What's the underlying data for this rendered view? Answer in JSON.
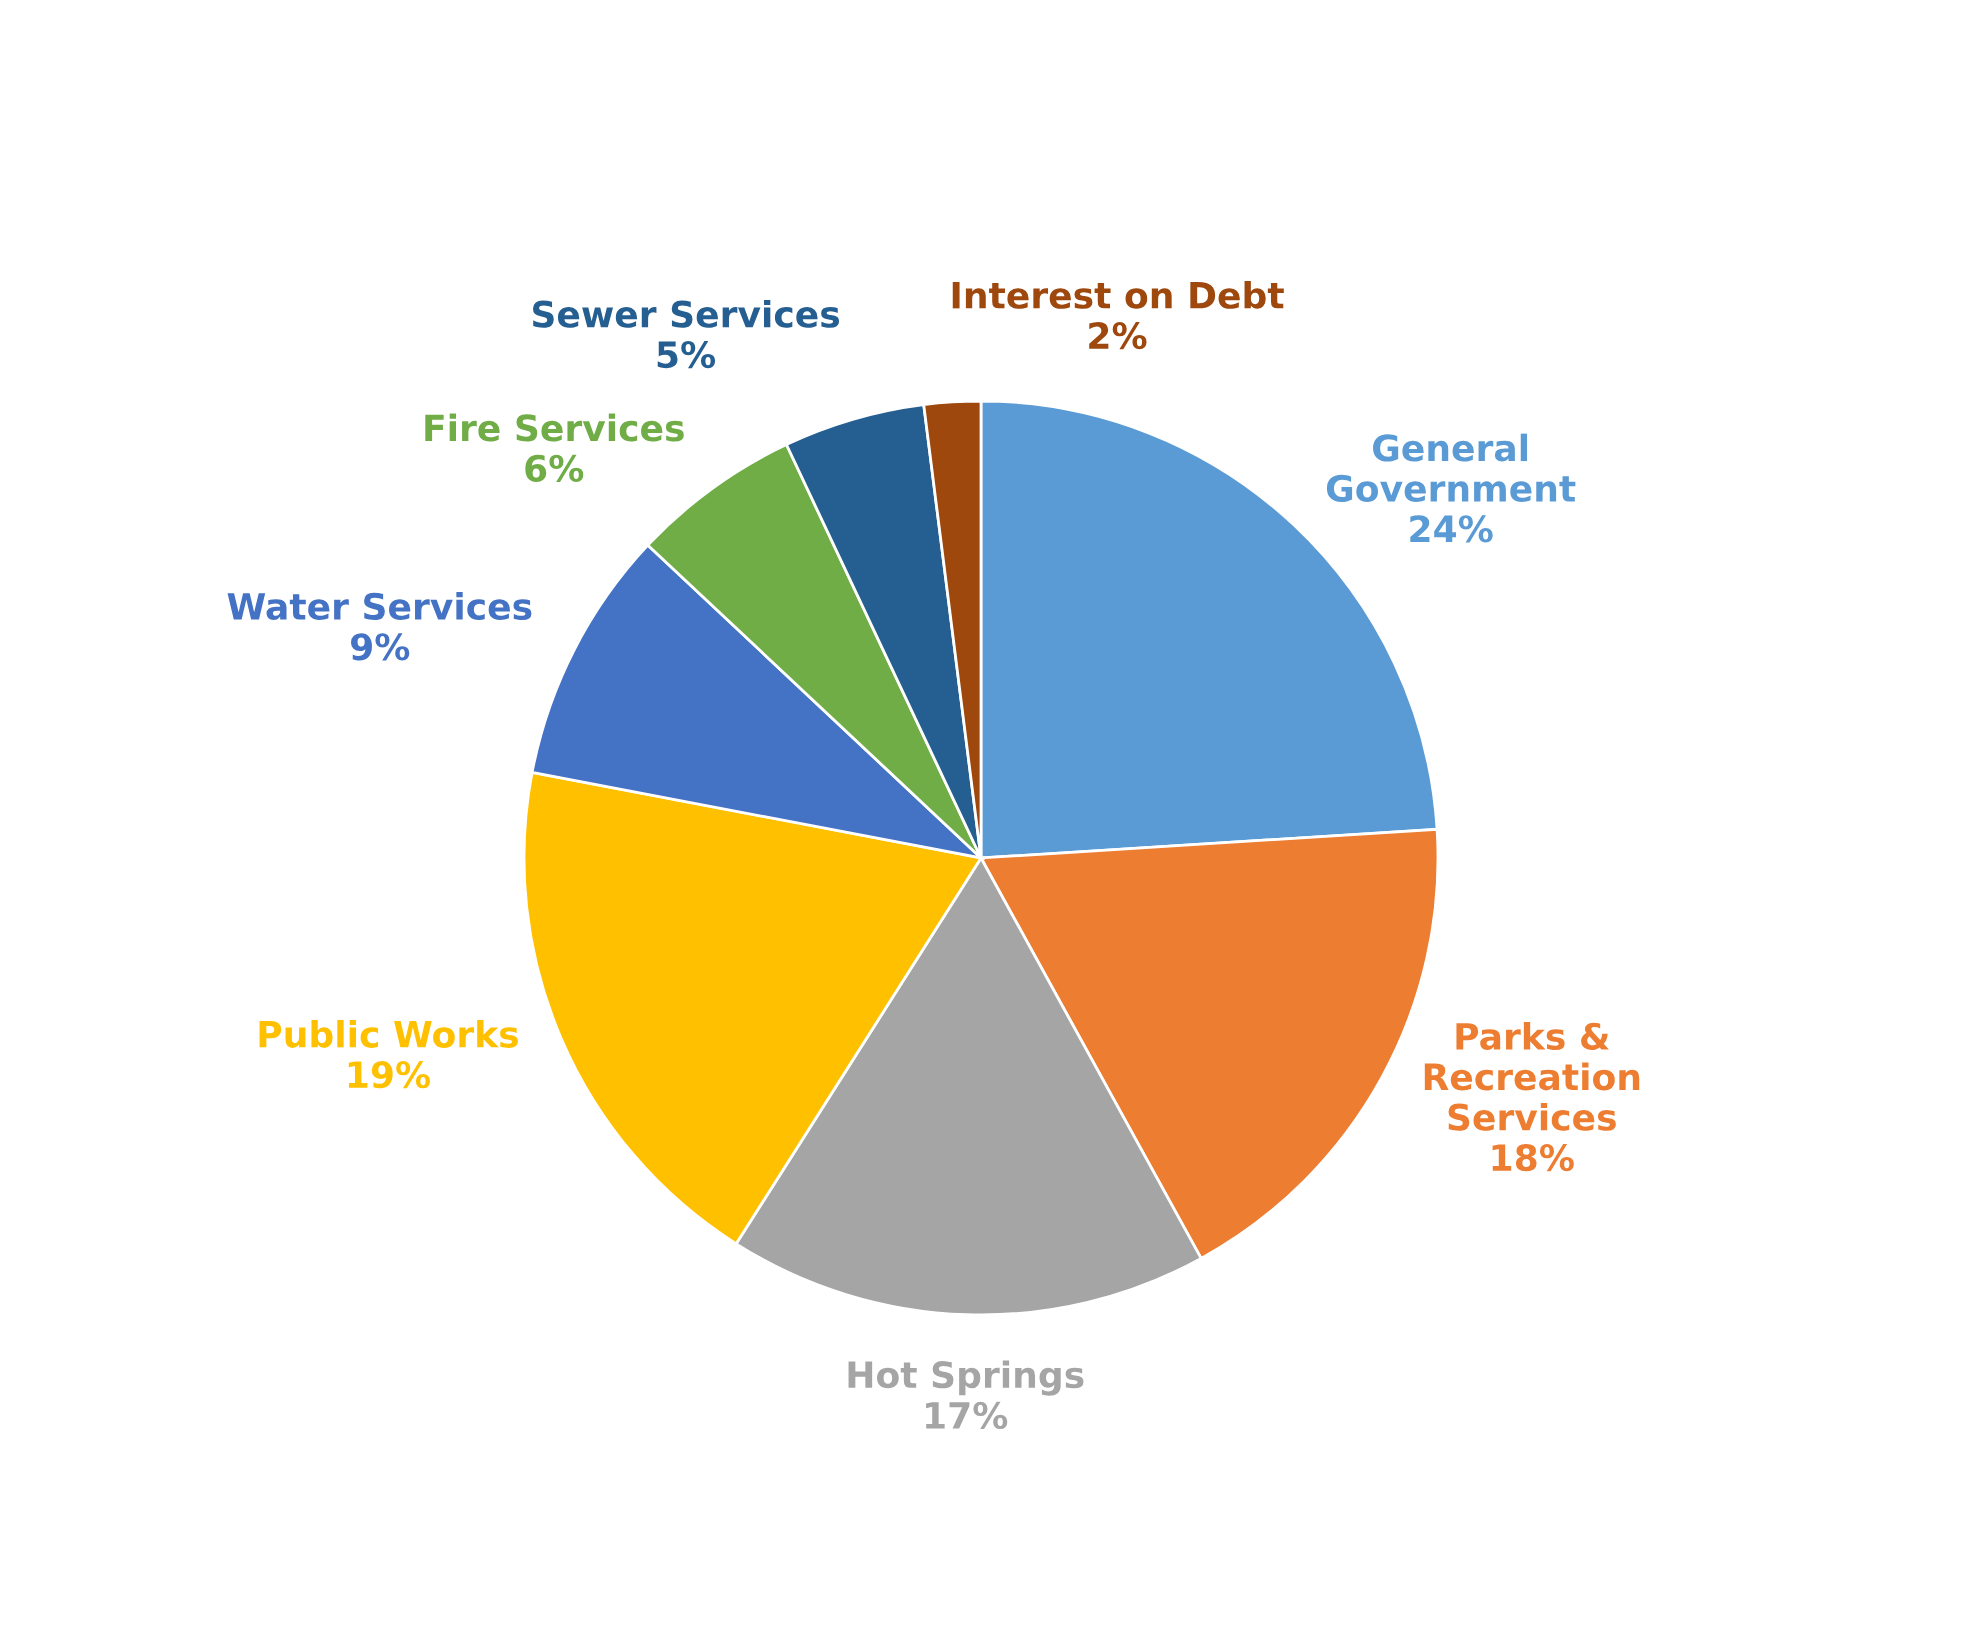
{
  "chart_data": {
    "type": "pie",
    "categories": [
      "General\nGovernment",
      "Parks &\nRecreation\nServices",
      "Hot Springs",
      "Public Works",
      "Water Services",
      "Fire Services",
      "Sewer Services",
      "Interest on Debt"
    ],
    "values": [
      24,
      18,
      17,
      19,
      9,
      6,
      5,
      2
    ],
    "value_labels": [
      "24%",
      "18%",
      "17%",
      "19%",
      "9%",
      "6%",
      "5%",
      "2%"
    ],
    "colors": [
      "#5b9bd5",
      "#ed7d31",
      "#a5a5a5",
      "#ffc000",
      "#4472c4",
      "#70ad47",
      "#255e91",
      "#9e480e"
    ],
    "legend": false
  }
}
